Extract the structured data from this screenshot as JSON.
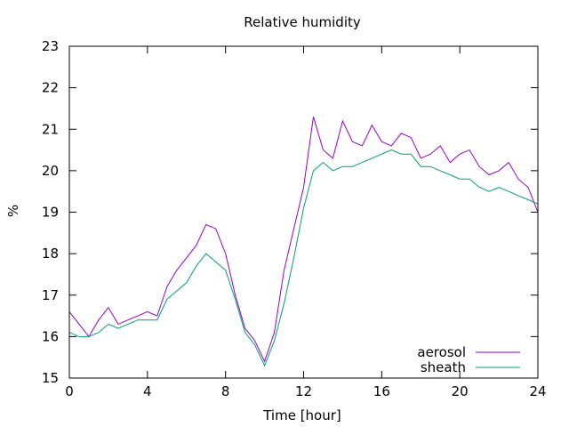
{
  "chart_data": {
    "type": "line",
    "title": "Relative humidity",
    "xlabel": "Time [hour]",
    "ylabel": "%",
    "xlim": [
      0,
      24
    ],
    "ylim": [
      15,
      23
    ],
    "xticks": [
      0,
      4,
      8,
      12,
      16,
      20,
      24
    ],
    "yticks": [
      15,
      16,
      17,
      18,
      19,
      20,
      21,
      22,
      23
    ],
    "grid": false,
    "legend_position": "bottom-right",
    "series": [
      {
        "name": "aerosol",
        "color": "#9400d3",
        "x": [
          0,
          0.5,
          1,
          1.5,
          2,
          2.5,
          3,
          3.5,
          4,
          4.5,
          5,
          5.5,
          6,
          6.5,
          7,
          7.5,
          8,
          8.5,
          9,
          9.5,
          10,
          10.5,
          11,
          11.5,
          12,
          12.5,
          13,
          13.5,
          14,
          14.5,
          15,
          15.5,
          16,
          16.5,
          17,
          17.5,
          18,
          18.5,
          19,
          19.5,
          20,
          20.5,
          21,
          21.5,
          22,
          22.5,
          23,
          23.5,
          24
        ],
        "values": [
          16.6,
          16.3,
          16.0,
          16.4,
          16.7,
          16.3,
          16.4,
          16.5,
          16.6,
          16.5,
          17.2,
          17.6,
          17.9,
          18.2,
          18.7,
          18.6,
          18.0,
          17.0,
          16.2,
          15.9,
          15.4,
          16.1,
          17.6,
          18.6,
          19.6,
          21.3,
          20.5,
          20.3,
          21.2,
          20.7,
          20.6,
          21.1,
          20.7,
          20.6,
          20.9,
          20.8,
          20.3,
          20.4,
          20.6,
          20.2,
          20.4,
          20.5,
          20.1,
          19.9,
          20.0,
          20.2,
          19.8,
          19.6,
          19.0
        ]
      },
      {
        "name": "sheath",
        "color": "#009e73",
        "x": [
          0,
          0.5,
          1,
          1.5,
          2,
          2.5,
          3,
          3.5,
          4,
          4.5,
          5,
          5.5,
          6,
          6.5,
          7,
          7.5,
          8,
          8.5,
          9,
          9.5,
          10,
          10.5,
          11,
          11.5,
          12,
          12.5,
          13,
          13.5,
          14,
          14.5,
          15,
          15.5,
          16,
          16.5,
          17,
          17.5,
          18,
          18.5,
          19,
          19.5,
          20,
          20.5,
          21,
          21.5,
          22,
          22.5,
          23,
          23.5,
          24
        ],
        "values": [
          16.1,
          16.0,
          16.0,
          16.1,
          16.3,
          16.2,
          16.3,
          16.4,
          16.4,
          16.4,
          16.9,
          17.1,
          17.3,
          17.7,
          18.0,
          17.8,
          17.6,
          16.9,
          16.1,
          15.8,
          15.3,
          15.9,
          16.8,
          17.9,
          19.1,
          20.0,
          20.2,
          20.0,
          20.1,
          20.1,
          20.2,
          20.3,
          20.4,
          20.5,
          20.4,
          20.4,
          20.1,
          20.1,
          20.0,
          19.9,
          19.8,
          19.8,
          19.6,
          19.5,
          19.6,
          19.5,
          19.4,
          19.3,
          19.2
        ]
      }
    ]
  }
}
